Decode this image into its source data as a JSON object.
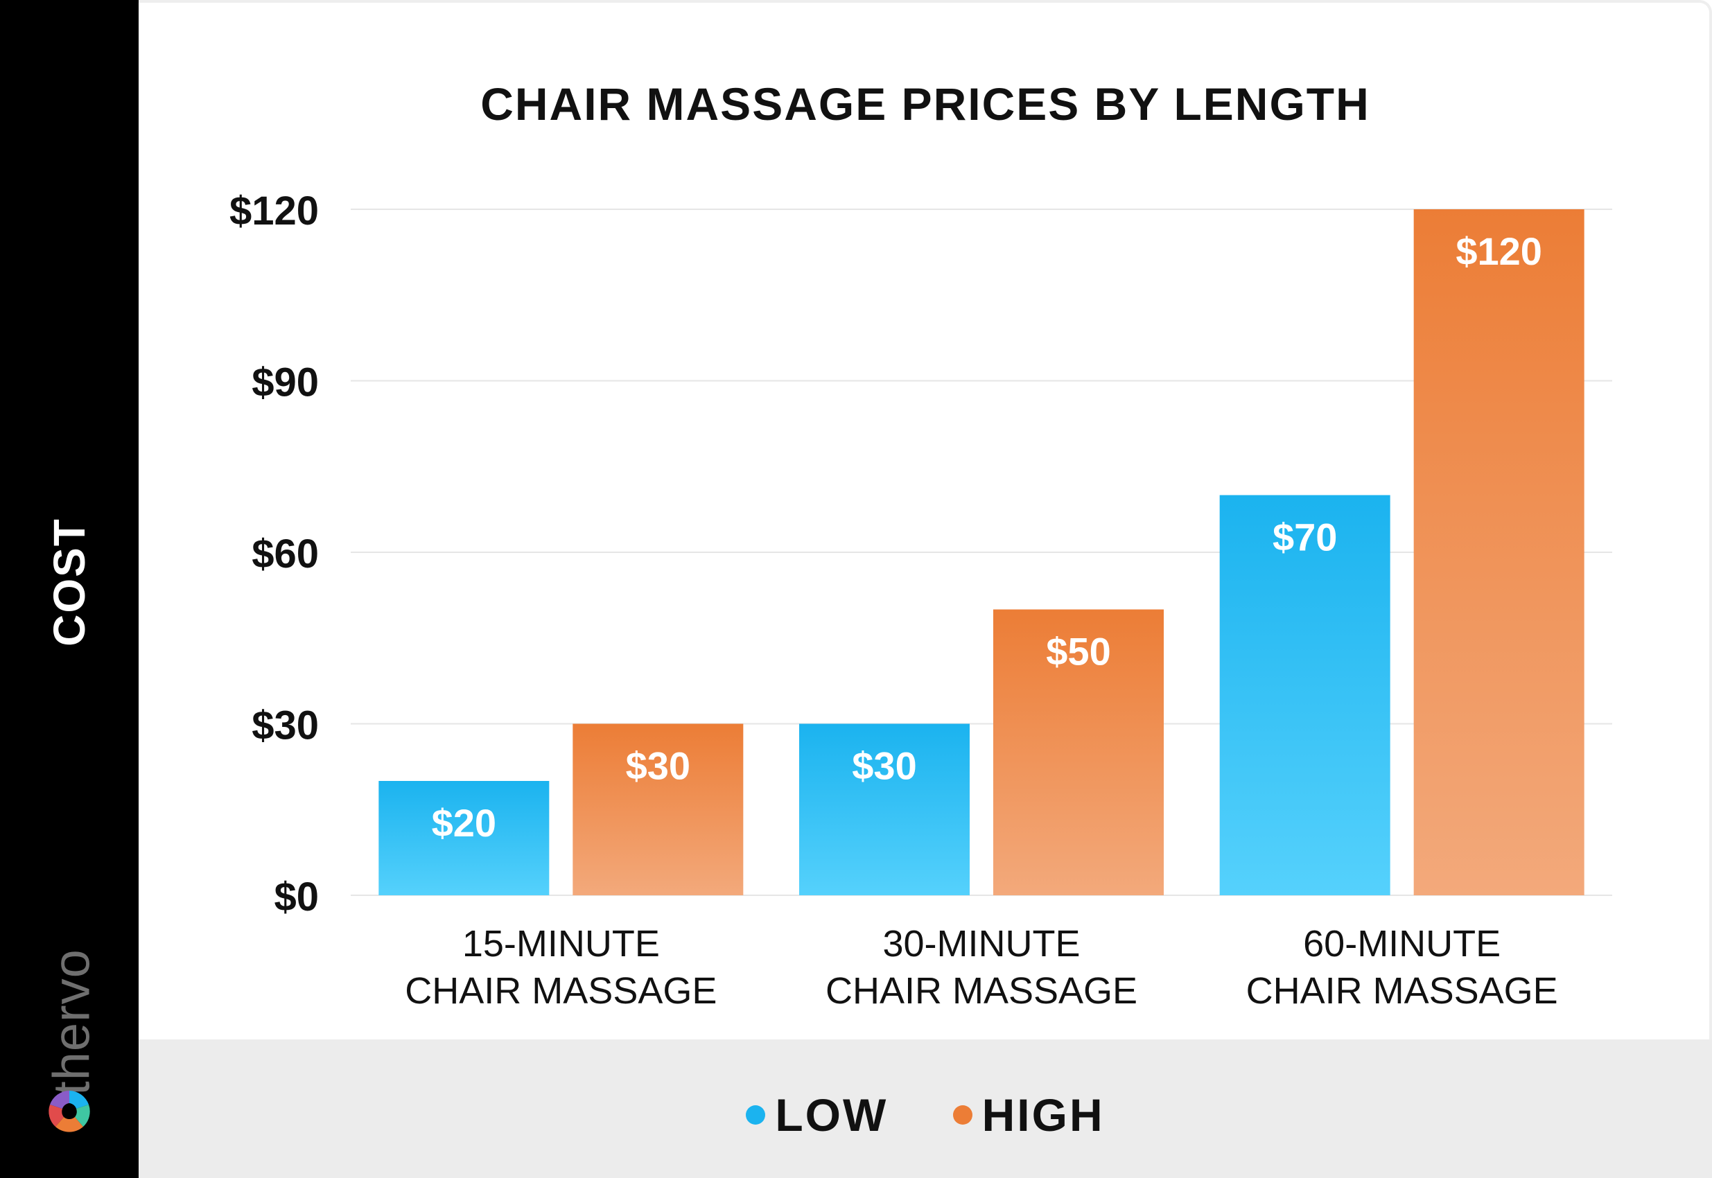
{
  "sidebar": {
    "axis_label": "COST",
    "logo_text": "thervo"
  },
  "colors": {
    "low": "#1bb3ef",
    "low_light": "#55d1fc",
    "high": "#ec7d36",
    "high_light": "#f3a97b"
  },
  "chart_data": {
    "type": "bar",
    "title": "CHAIR MASSAGE PRICES BY LENGTH",
    "ylabel": "COST",
    "xlabel": "",
    "ylim": [
      0,
      120
    ],
    "yticks": [
      0,
      30,
      60,
      90,
      120
    ],
    "ytick_labels": [
      "$0",
      "$30",
      "$60",
      "$90",
      "$120"
    ],
    "categories": [
      [
        "15-MINUTE",
        "CHAIR MASSAGE"
      ],
      [
        "30-MINUTE",
        "CHAIR MASSAGE"
      ],
      [
        "60-MINUTE",
        "CHAIR MASSAGE"
      ]
    ],
    "series": [
      {
        "name": "LOW",
        "values": [
          20,
          30,
          70
        ],
        "labels": [
          "$20",
          "$30",
          "$70"
        ]
      },
      {
        "name": "HIGH",
        "values": [
          30,
          50,
          120
        ],
        "labels": [
          "$30",
          "$50",
          "$120"
        ]
      }
    ],
    "grid": true,
    "legend_position": "bottom"
  }
}
